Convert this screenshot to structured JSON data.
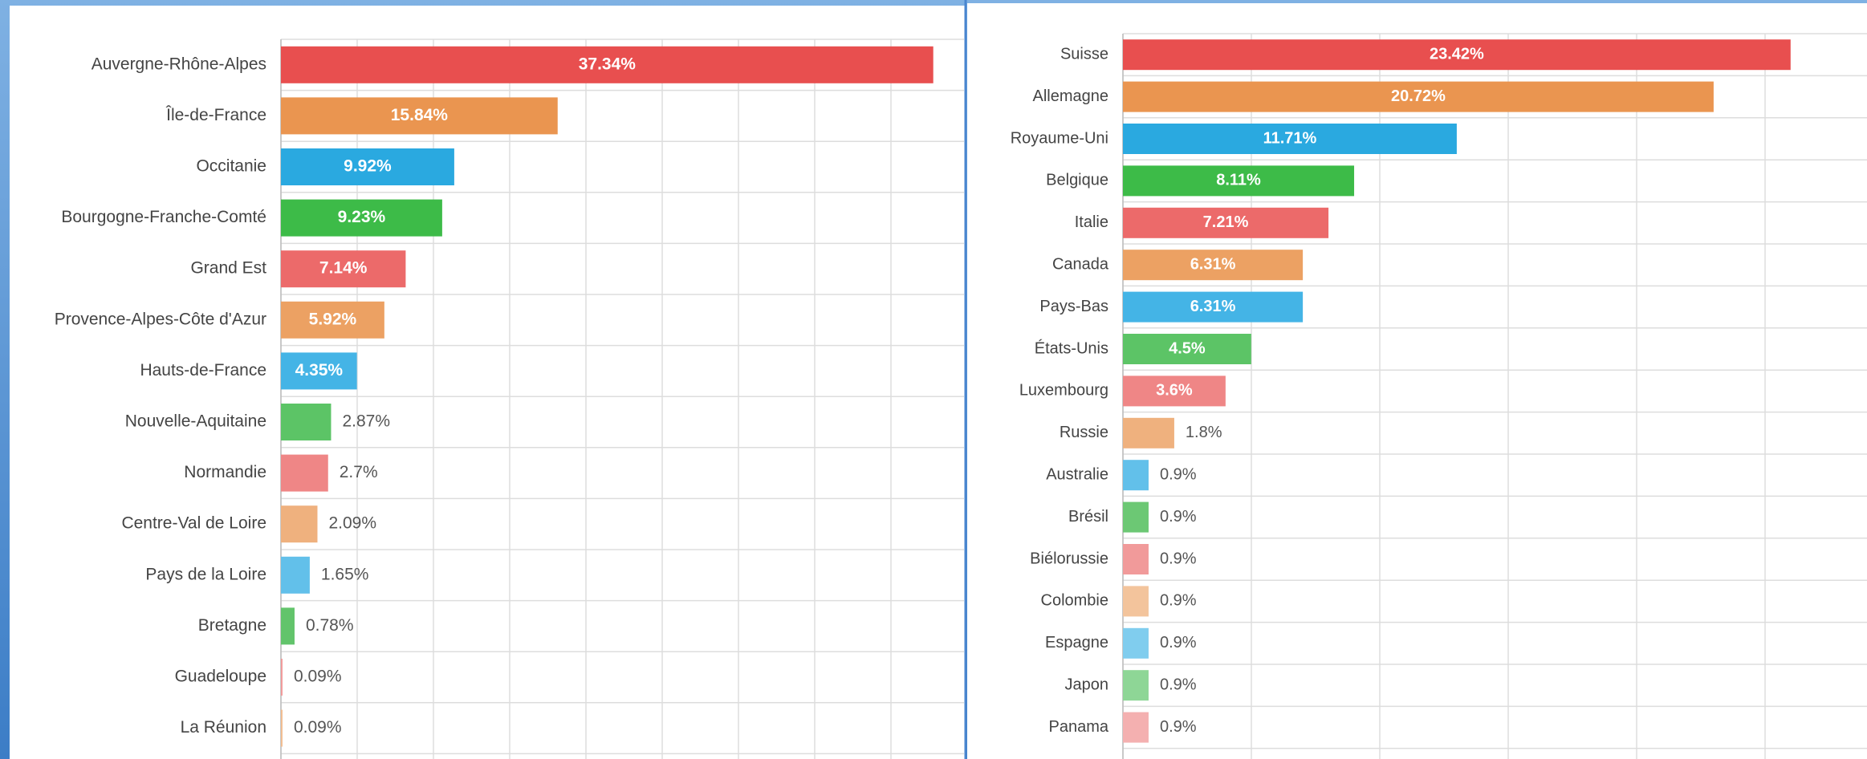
{
  "chart_data": [
    {
      "type": "bar",
      "horizontal": true,
      "grid": true,
      "categories": [
        "Auvergne-Rhône-Alpes",
        "Île-de-France",
        "Occitanie",
        "Bourgogne-Franche-Comté",
        "Grand Est",
        "Provence-Alpes-Côte d'Azur",
        "Hauts-de-France",
        "Nouvelle-Aquitaine",
        "Normandie",
        "Centre-Val de Loire",
        "Pays de la Loire",
        "Bretagne",
        "Guadeloupe",
        "La Réunion"
      ],
      "values": [
        37.34,
        15.84,
        9.92,
        9.23,
        7.14,
        5.92,
        4.35,
        2.87,
        2.7,
        2.09,
        1.65,
        0.78,
        0.09,
        0.09
      ],
      "value_labels": [
        "37.34%",
        "15.84%",
        "9.92%",
        "9.23%",
        "7.14%",
        "5.92%",
        "4.35%",
        "2.87%",
        "2.7%",
        "2.09%",
        "1.65%",
        "0.78%",
        "0.09%",
        "0.09%"
      ],
      "colors": [
        "#e84f4f",
        "#ea9550",
        "#2aa9e0",
        "#3dbb48",
        "#ec6a6a",
        "#eca163",
        "#44b4e6",
        "#5cc466",
        "#ef8686",
        "#efb17e",
        "#62c0ea",
        "#62c46b",
        "#f19a9a",
        "#f2bd91"
      ],
      "xlim": [
        0,
        39.1
      ]
    },
    {
      "type": "bar",
      "horizontal": true,
      "grid": true,
      "categories": [
        "Suisse",
        "Allemagne",
        "Royaume-Uni",
        "Belgique",
        "Italie",
        "Canada",
        "Pays-Bas",
        "États-Unis",
        "Luxembourg",
        "Russie",
        "Australie",
        "Brésil",
        "Biélorussie",
        "Colombie",
        "Espagne",
        "Japon",
        "Panama"
      ],
      "values": [
        23.42,
        20.72,
        11.71,
        8.11,
        7.21,
        6.31,
        6.31,
        4.5,
        3.6,
        1.8,
        0.9,
        0.9,
        0.9,
        0.9,
        0.9,
        0.9,
        0.9
      ],
      "value_labels": [
        "23.42%",
        "20.72%",
        "11.71%",
        "8.11%",
        "7.21%",
        "6.31%",
        "6.31%",
        "4.5%",
        "3.6%",
        "1.8%",
        "0.9%",
        "0.9%",
        "0.9%",
        "0.9%",
        "0.9%",
        "0.9%",
        "0.9%"
      ],
      "colors": [
        "#e84f4f",
        "#ea9550",
        "#2aa9e0",
        "#3dbb48",
        "#ec6a6a",
        "#eca163",
        "#44b4e6",
        "#5cc466",
        "#ef8686",
        "#efb17e",
        "#62c0ea",
        "#6cc874",
        "#f19a9a",
        "#f3c49c",
        "#80cdee",
        "#8ed696",
        "#f4b0b0"
      ],
      "xlim": [
        0,
        26.1
      ]
    }
  ]
}
